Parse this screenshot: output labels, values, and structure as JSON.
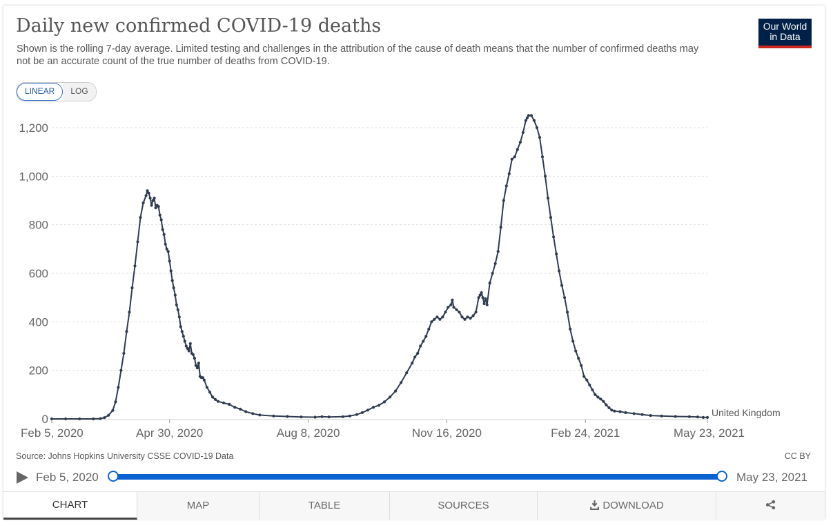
{
  "title": "Daily new confirmed COVID-19 deaths",
  "subtitle": "Shown is the rolling 7-day average. Limited testing and challenges in the attribution of the cause of death means that the number of confirmed deaths may not be an accurate count of the true number of deaths from COVID-19.",
  "logo": {
    "line1": "Our World",
    "line2": "in Data"
  },
  "scale_toggle": {
    "linear_label": "LINEAR",
    "log_label": "LOG",
    "selected": "LINEAR"
  },
  "source": "Source: Johns Hopkins University CSSE COVID-19 Data",
  "license": "CC BY",
  "timeline": {
    "start": "Feb 5, 2020",
    "end": "May 23, 2021"
  },
  "tabs": [
    {
      "label": "CHART",
      "icon": ""
    },
    {
      "label": "MAP",
      "icon": ""
    },
    {
      "label": "TABLE",
      "icon": ""
    },
    {
      "label": "SOURCES",
      "icon": ""
    },
    {
      "label": "DOWNLOAD",
      "icon": "download-icon"
    },
    {
      "label": "",
      "icon": "share-icon"
    }
  ],
  "colors": {
    "line": "#2f3b50",
    "accent": "#0a62d1",
    "logo_bg": "#002147",
    "logo_bar": "#ce261e"
  },
  "chart_data": {
    "type": "line",
    "title": "Daily new confirmed COVID-19 deaths",
    "xlabel": "",
    "ylabel": "",
    "ylim": [
      0,
      1200
    ],
    "yticks": [
      0,
      200,
      400,
      600,
      800,
      1000,
      1200
    ],
    "ytick_labels": [
      "0",
      "200",
      "400",
      "600",
      "800",
      "1,000",
      "1,200"
    ],
    "x_domain_days": [
      0,
      473
    ],
    "xticks": [
      {
        "day": 0,
        "label": "Feb 5, 2020"
      },
      {
        "day": 85,
        "label": "Apr 30, 2020"
      },
      {
        "day": 185,
        "label": "Aug 8, 2020"
      },
      {
        "day": 285,
        "label": "Nov 16, 2020"
      },
      {
        "day": 385,
        "label": "Feb 24, 2021"
      },
      {
        "day": 473,
        "label": "May 23, 2021"
      }
    ],
    "grid": true,
    "series": [
      {
        "name": "United Kingdom",
        "points": [
          [
            0,
            0
          ],
          [
            10,
            0
          ],
          [
            20,
            0
          ],
          [
            30,
            0
          ],
          [
            35,
            1
          ],
          [
            38,
            5
          ],
          [
            41,
            15
          ],
          [
            44,
            35
          ],
          [
            46,
            70
          ],
          [
            48,
            130
          ],
          [
            50,
            200
          ],
          [
            52,
            270
          ],
          [
            54,
            360
          ],
          [
            56,
            440
          ],
          [
            58,
            540
          ],
          [
            60,
            630
          ],
          [
            62,
            730
          ],
          [
            64,
            830
          ],
          [
            66,
            890
          ],
          [
            68,
            920
          ],
          [
            69,
            940
          ],
          [
            70,
            930
          ],
          [
            71,
            910
          ],
          [
            72,
            880
          ],
          [
            73,
            900
          ],
          [
            74,
            910
          ],
          [
            75,
            870
          ],
          [
            76,
            880
          ],
          [
            77,
            875
          ],
          [
            78,
            840
          ],
          [
            79,
            820
          ],
          [
            80,
            780
          ],
          [
            81,
            760
          ],
          [
            82,
            720
          ],
          [
            83,
            700
          ],
          [
            84,
            690
          ],
          [
            85,
            650
          ],
          [
            86,
            610
          ],
          [
            87,
            570
          ],
          [
            88,
            540
          ],
          [
            89,
            510
          ],
          [
            90,
            470
          ],
          [
            91,
            450
          ],
          [
            92,
            420
          ],
          [
            93,
            380
          ],
          [
            94,
            360
          ],
          [
            95,
            340
          ],
          [
            96,
            320
          ],
          [
            97,
            300
          ],
          [
            98,
            290
          ],
          [
            99,
            280
          ],
          [
            100,
            310
          ],
          [
            101,
            270
          ],
          [
            102,
            265
          ],
          [
            103,
            250
          ],
          [
            104,
            220
          ],
          [
            105,
            210
          ],
          [
            106,
            230
          ],
          [
            107,
            175
          ],
          [
            108,
            170
          ],
          [
            109,
            170
          ],
          [
            110,
            160
          ],
          [
            112,
            130
          ],
          [
            114,
            110
          ],
          [
            116,
            90
          ],
          [
            118,
            80
          ],
          [
            120,
            72
          ],
          [
            124,
            66
          ],
          [
            128,
            60
          ],
          [
            132,
            48
          ],
          [
            136,
            40
          ],
          [
            140,
            30
          ],
          [
            145,
            22
          ],
          [
            150,
            16
          ],
          [
            160,
            12
          ],
          [
            170,
            10
          ],
          [
            180,
            8
          ],
          [
            190,
            7
          ],
          [
            195,
            9
          ],
          [
            200,
            8
          ],
          [
            210,
            9
          ],
          [
            215,
            12
          ],
          [
            220,
            18
          ],
          [
            224,
            26
          ],
          [
            228,
            36
          ],
          [
            232,
            48
          ],
          [
            236,
            56
          ],
          [
            240,
            70
          ],
          [
            244,
            90
          ],
          [
            248,
            115
          ],
          [
            252,
            150
          ],
          [
            256,
            190
          ],
          [
            260,
            230
          ],
          [
            262,
            255
          ],
          [
            264,
            270
          ],
          [
            266,
            300
          ],
          [
            268,
            320
          ],
          [
            270,
            340
          ],
          [
            272,
            370
          ],
          [
            274,
            400
          ],
          [
            276,
            410
          ],
          [
            278,
            420
          ],
          [
            280,
            410
          ],
          [
            282,
            420
          ],
          [
            284,
            440
          ],
          [
            286,
            460
          ],
          [
            288,
            470
          ],
          [
            289,
            490
          ],
          [
            290,
            460
          ],
          [
            292,
            450
          ],
          [
            294,
            440
          ],
          [
            296,
            420
          ],
          [
            298,
            410
          ],
          [
            300,
            420
          ],
          [
            302,
            415
          ],
          [
            304,
            425
          ],
          [
            306,
            440
          ],
          [
            308,
            500
          ],
          [
            309,
            510
          ],
          [
            310,
            520
          ],
          [
            311,
            500
          ],
          [
            312,
            475
          ],
          [
            313,
            495
          ],
          [
            314,
            470
          ],
          [
            316,
            560
          ],
          [
            318,
            600
          ],
          [
            320,
            640
          ],
          [
            322,
            690
          ],
          [
            324,
            790
          ],
          [
            326,
            900
          ],
          [
            328,
            960
          ],
          [
            330,
            1010
          ],
          [
            332,
            1070
          ],
          [
            334,
            1080
          ],
          [
            336,
            1110
          ],
          [
            338,
            1140
          ],
          [
            340,
            1180
          ],
          [
            342,
            1230
          ],
          [
            343,
            1240
          ],
          [
            344,
            1250
          ],
          [
            346,
            1250
          ],
          [
            348,
            1230
          ],
          [
            350,
            1200
          ],
          [
            352,
            1160
          ],
          [
            354,
            1080
          ],
          [
            356,
            1000
          ],
          [
            358,
            910
          ],
          [
            360,
            830
          ],
          [
            362,
            750
          ],
          [
            364,
            680
          ],
          [
            366,
            610
          ],
          [
            368,
            550
          ],
          [
            370,
            500
          ],
          [
            372,
            440
          ],
          [
            374,
            370
          ],
          [
            376,
            320
          ],
          [
            378,
            280
          ],
          [
            380,
            250
          ],
          [
            382,
            220
          ],
          [
            384,
            175
          ],
          [
            386,
            160
          ],
          [
            388,
            140
          ],
          [
            390,
            120
          ],
          [
            392,
            100
          ],
          [
            394,
            90
          ],
          [
            396,
            82
          ],
          [
            398,
            72
          ],
          [
            400,
            58
          ],
          [
            402,
            46
          ],
          [
            404,
            36
          ],
          [
            406,
            32
          ],
          [
            410,
            30
          ],
          [
            414,
            26
          ],
          [
            420,
            22
          ],
          [
            426,
            18
          ],
          [
            432,
            14
          ],
          [
            440,
            12
          ],
          [
            450,
            10
          ],
          [
            460,
            9
          ],
          [
            466,
            8
          ],
          [
            470,
            6
          ],
          [
            473,
            6
          ]
        ]
      }
    ]
  }
}
